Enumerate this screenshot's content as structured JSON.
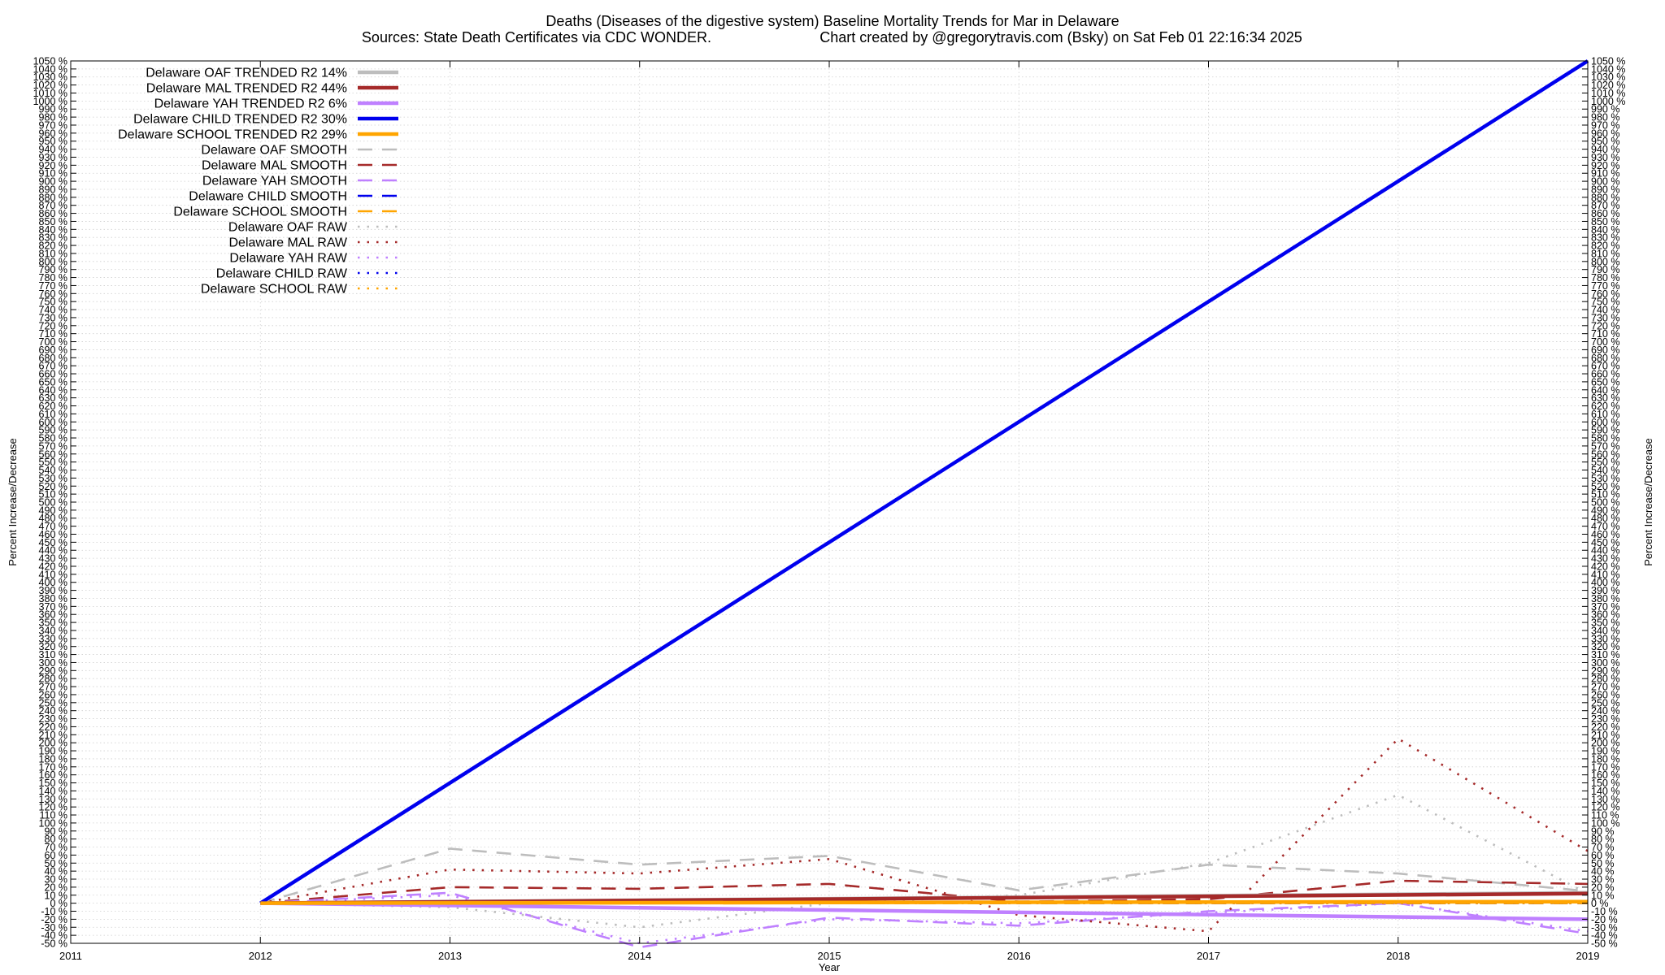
{
  "chart_data": {
    "type": "line",
    "title_line1": "Deaths (Diseases of the digestive system)  Baseline Mortality Trends for Mar in Delaware",
    "title_line2_left": "Sources: State Death Certificates via CDC WONDER.",
    "title_line2_right": "Chart created by @gregorytravis.com (Bsky) on Sat Feb 01 22:16:34 2025",
    "xlabel": "Year",
    "ylabel": "Percent Increase/Decrease",
    "ylabel_right": "Percent Increase/Decrease",
    "xlim": [
      2011,
      2019
    ],
    "ylim": [
      -50,
      1050
    ],
    "ytick_step": 10,
    "ytick_suffix": " %",
    "grid": true,
    "legend_position": "top-left",
    "series": [
      {
        "name": "Delaware OAF TRENDED R2  14%",
        "style": "solid",
        "color": "#bdbdbd",
        "x": [
          2012,
          2019
        ],
        "y": [
          0,
          13
        ]
      },
      {
        "name": "Delaware MAL TRENDED R2  44%",
        "style": "solid",
        "color": "#a52a2a",
        "x": [
          2012,
          2019
        ],
        "y": [
          0,
          12
        ]
      },
      {
        "name": "Delaware YAH TRENDED R2   6%",
        "style": "solid",
        "color": "#bf80ff",
        "x": [
          2012,
          2019
        ],
        "y": [
          0,
          -20
        ]
      },
      {
        "name": "Delaware CHILD TRENDED R2  30%",
        "style": "solid",
        "color": "#0000ee",
        "x": [
          2012,
          2019
        ],
        "y": [
          0,
          1050
        ]
      },
      {
        "name": "Delaware SCHOOL TRENDED R2  29%",
        "style": "solid",
        "color": "#ffa500",
        "x": [
          2012,
          2019
        ],
        "y": [
          0,
          2
        ]
      },
      {
        "name": "Delaware OAF SMOOTH",
        "style": "dashed",
        "color": "#bdbdbd",
        "x": [
          2012,
          2013,
          2014,
          2015,
          2016,
          2017,
          2018,
          2019
        ],
        "y": [
          0,
          68,
          48,
          59,
          16,
          48,
          37,
          15
        ]
      },
      {
        "name": "Delaware MAL SMOOTH",
        "style": "dashed",
        "color": "#a52a2a",
        "x": [
          2012,
          2013,
          2014,
          2015,
          2016,
          2017,
          2018,
          2019
        ],
        "y": [
          0,
          20,
          18,
          24,
          2,
          5,
          28,
          24
        ]
      },
      {
        "name": "Delaware YAH SMOOTH",
        "style": "dashed",
        "color": "#bf80ff",
        "x": [
          2012,
          2013,
          2014,
          2015,
          2015.4,
          2016,
          2017,
          2018,
          2019
        ],
        "y": [
          0,
          13,
          -55,
          -18,
          -22,
          -28,
          -10,
          0,
          -38
        ]
      },
      {
        "name": "Delaware CHILD SMOOTH",
        "style": "dashed",
        "color": "#0000ee",
        "x": [
          2012,
          2019
        ],
        "y": [
          0,
          0
        ]
      },
      {
        "name": "Delaware SCHOOL SMOOTH",
        "style": "dashed",
        "color": "#ffa500",
        "x": [
          2012,
          2019
        ],
        "y": [
          0,
          0
        ]
      },
      {
        "name": "Delaware OAF RAW",
        "style": "dotted",
        "color": "#bdbdbd",
        "x": [
          2012,
          2013,
          2014,
          2015,
          2016,
          2017,
          2018,
          2019
        ],
        "y": [
          0,
          -5,
          -30,
          0,
          10,
          50,
          135,
          12
        ]
      },
      {
        "name": "Delaware MAL RAW",
        "style": "dotted",
        "color": "#a52a2a",
        "x": [
          2012,
          2013,
          2014,
          2015,
          2016,
          2017,
          2018,
          2019
        ],
        "y": [
          0,
          42,
          37,
          55,
          -15,
          -35,
          205,
          65
        ]
      },
      {
        "name": "Delaware YAH RAW",
        "style": "dotted",
        "color": "#bf80ff",
        "x": [
          2012,
          2013,
          2014,
          2015,
          2016,
          2017,
          2018,
          2019
        ],
        "y": [
          0,
          10,
          -50,
          -20,
          -25,
          -12,
          0,
          -35
        ]
      },
      {
        "name": "Delaware CHILD RAW",
        "style": "dotted",
        "color": "#0000ee",
        "x": [
          2012,
          2019
        ],
        "y": [
          0,
          0
        ]
      },
      {
        "name": "Delaware SCHOOL RAW",
        "style": "dotted",
        "color": "#ffa500",
        "x": [
          2012,
          2019
        ],
        "y": [
          0,
          0
        ]
      }
    ]
  }
}
